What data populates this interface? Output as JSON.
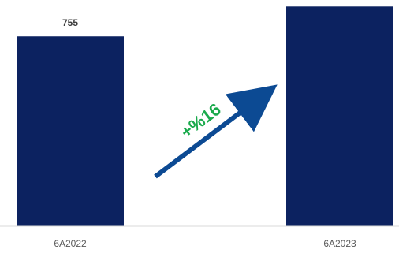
{
  "chart_data": {
    "type": "bar",
    "categories": [
      "6A2022",
      "6A2023"
    ],
    "values": [
      755,
      874
    ],
    "ylim": [
      0,
      900
    ],
    "grid": false,
    "legend": "none",
    "annotation": {
      "text": "+%16",
      "arrow_direction": "up-right"
    }
  },
  "colors": {
    "bar": "#0c2260",
    "arrow": "#0c4a93",
    "annotation_text": "#1aaa4c",
    "axis": "#d9d9d9",
    "value_label": "#3f3f3f",
    "tick_label": "#595959"
  }
}
